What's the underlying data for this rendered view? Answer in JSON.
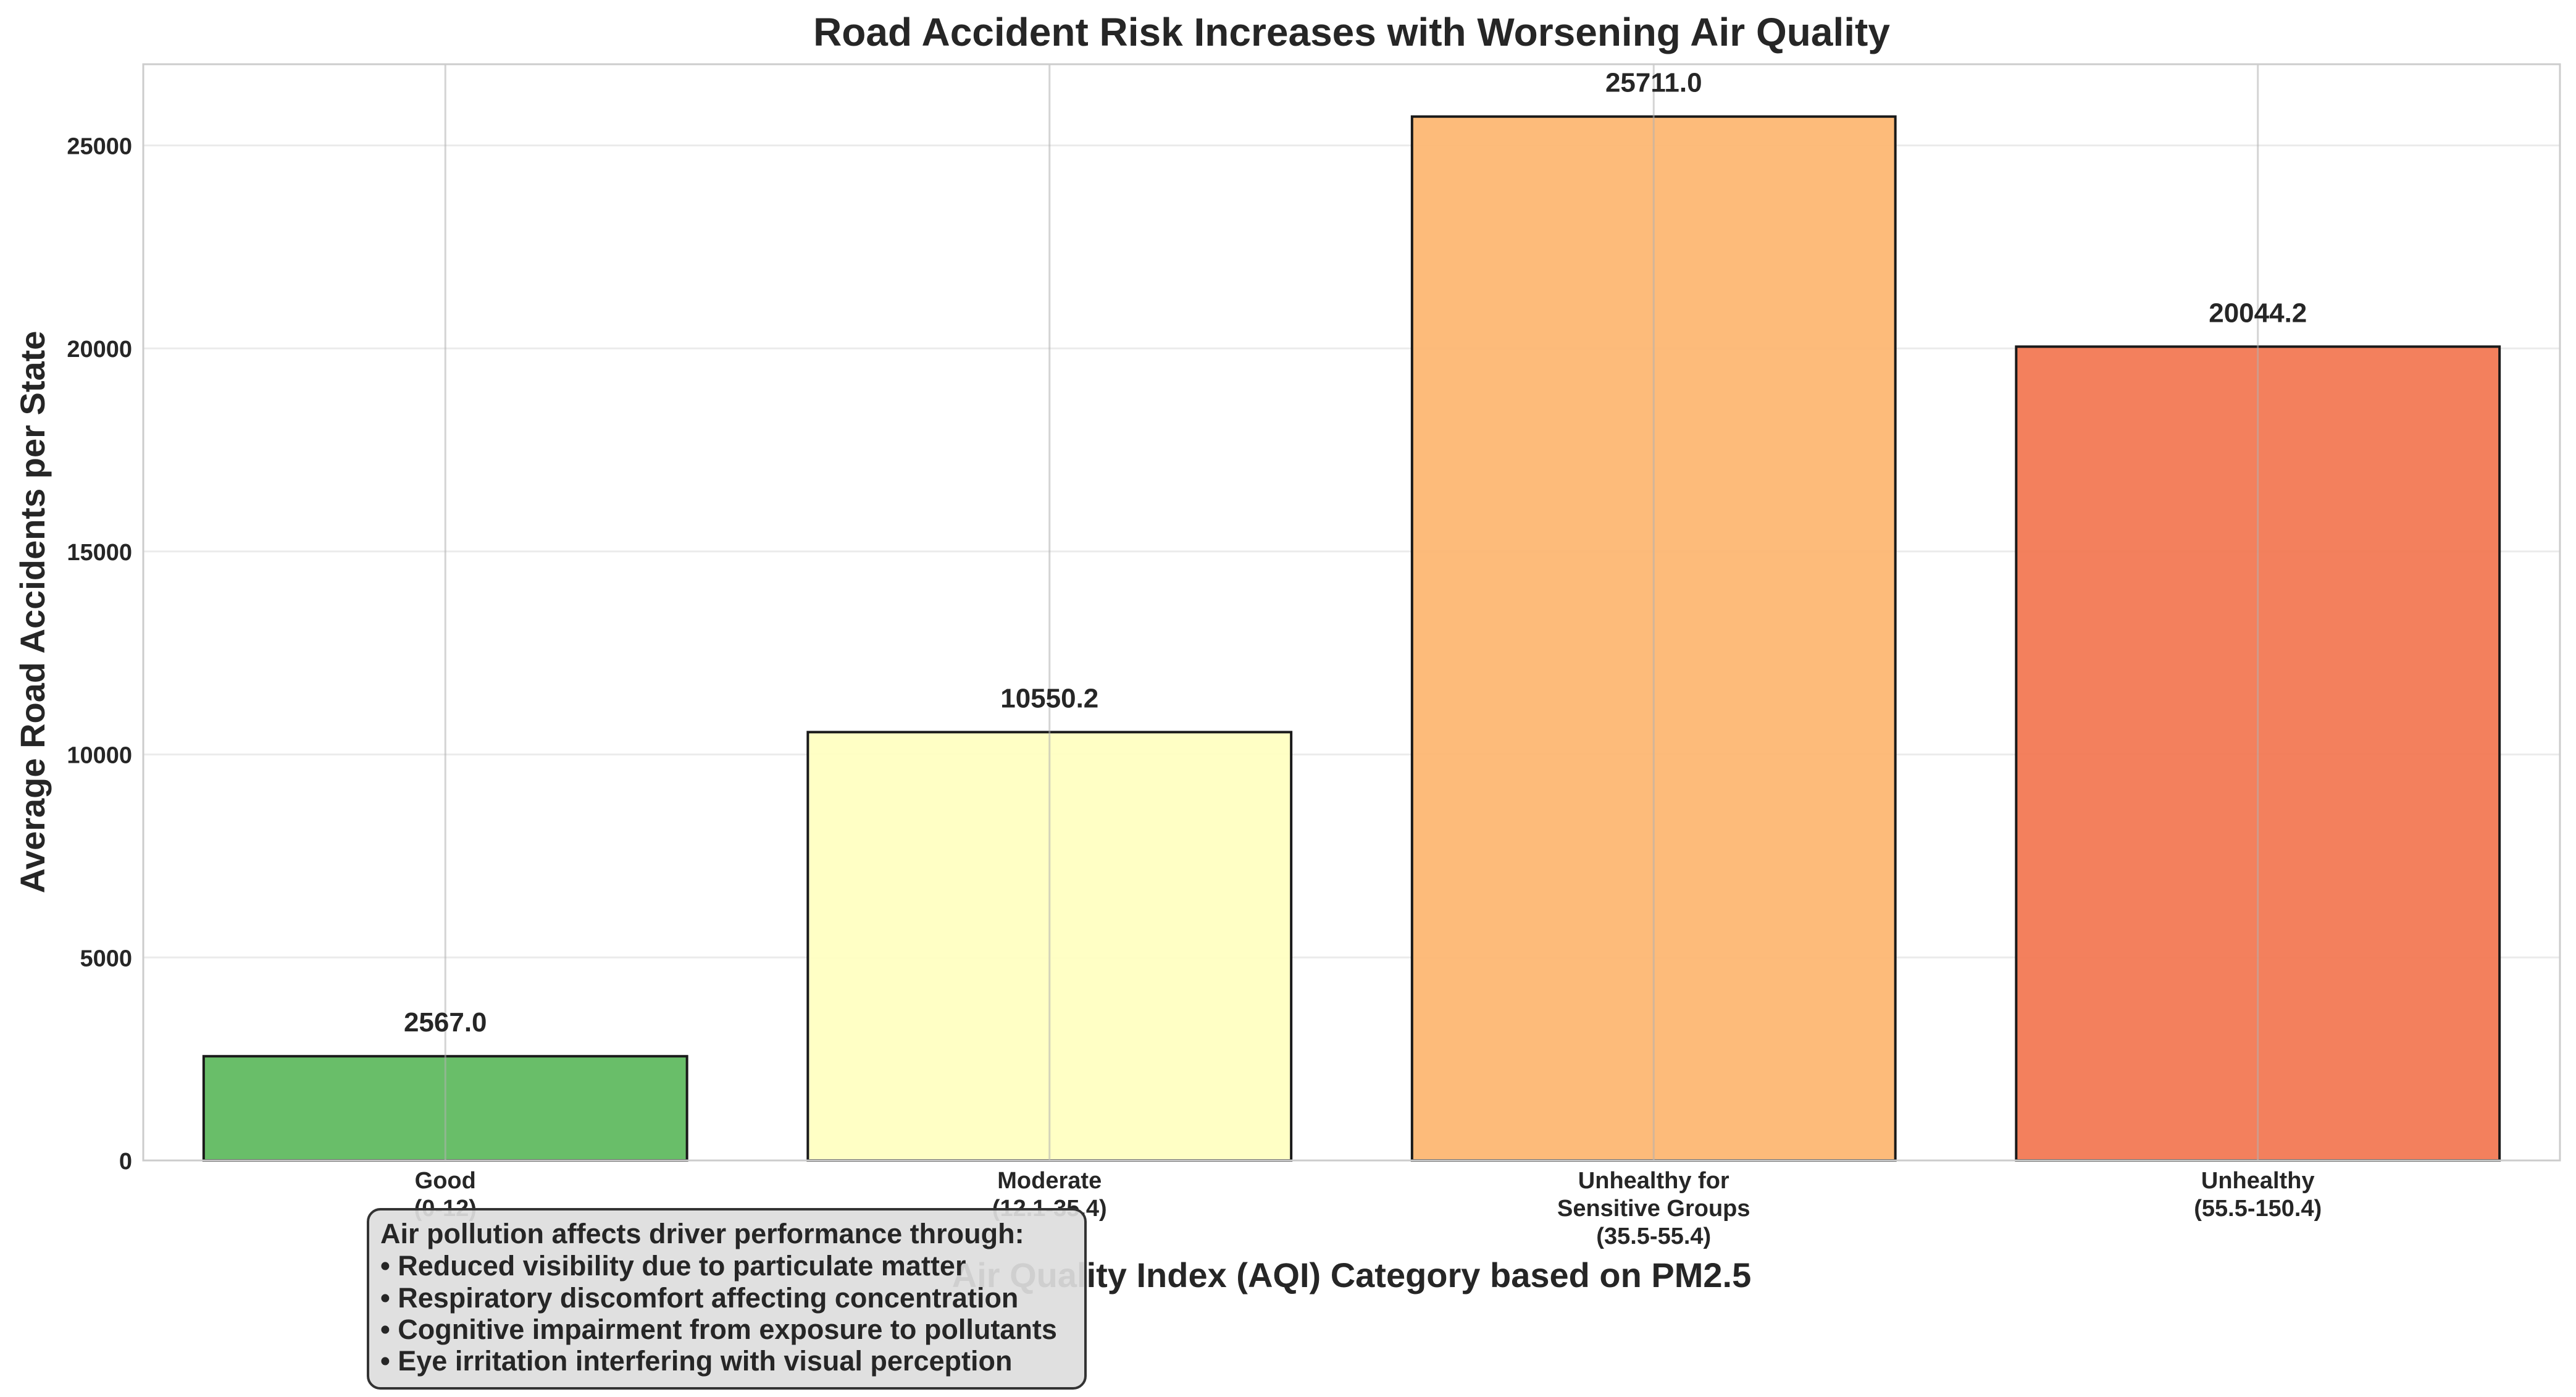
{
  "chart_data": {
    "type": "bar",
    "title": "Road Accident Risk Increases with Worsening Air Quality",
    "xlabel": "Air Quality Index (AQI) Category based on PM2.5",
    "ylabel": "Average Road Accidents per State",
    "categories": [
      [
        "Good",
        "(0-12)"
      ],
      [
        "Moderate",
        "(12.1-35.4)"
      ],
      [
        "Unhealthy for",
        "Sensitive Groups",
        "(35.5-55.4)"
      ],
      [
        "Unhealthy",
        "(55.5-150.4)"
      ]
    ],
    "values": [
      2567.0,
      10550.2,
      25711.0,
      20044.2
    ],
    "value_labels": [
      "2567.0",
      "10550.2",
      "25711.0",
      "20044.2"
    ],
    "colors": [
      "#5cb85c",
      "#ffffc0",
      "#fdb56f",
      "#f2754f"
    ],
    "ylim": [
      0,
      27000
    ],
    "yticks": [
      0,
      5000,
      10000,
      15000,
      20000,
      25000
    ],
    "grid": true,
    "annotation": {
      "lines": [
        "Air pollution affects driver performance through:",
        "• Reduced visibility due to particulate matter",
        "• Respiratory discomfort affecting concentration",
        "• Cognitive impairment from exposure to pollutants",
        "• Eye irritation interfering with visual perception"
      ]
    }
  }
}
